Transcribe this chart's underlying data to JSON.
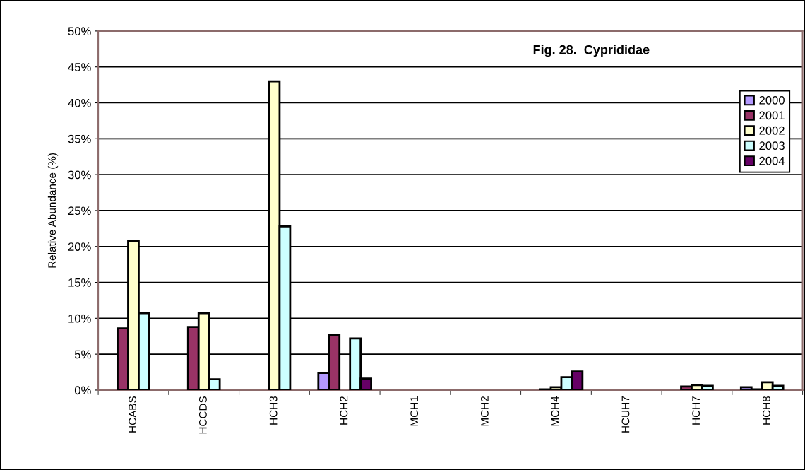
{
  "chart_data": {
    "type": "bar",
    "title": "Fig. 28.  Cyprididae",
    "ylabel": "Relative Abundance (%)",
    "categories": [
      "HCABS",
      "HCCDS",
      "HCH3",
      "HCH2",
      "MCH1",
      "MCH2",
      "MCH4",
      "HCUH7",
      "HCH7",
      "HCH8"
    ],
    "series": [
      {
        "name": "2000",
        "color": "#b399ff",
        "values": [
          0,
          0,
          0,
          2.4,
          0,
          0,
          null,
          0,
          null,
          0.4
        ]
      },
      {
        "name": "2001",
        "color": "#993366",
        "values": [
          8.6,
          8.8,
          0,
          7.7,
          0,
          0,
          0.1,
          0,
          0.5,
          0.1
        ]
      },
      {
        "name": "2002",
        "color": "#ffffcc",
        "values": [
          20.8,
          10.7,
          43,
          0,
          0,
          0,
          0.4,
          0,
          0.7,
          1.1
        ]
      },
      {
        "name": "2003",
        "color": "#ccffff",
        "values": [
          10.7,
          1.5,
          22.8,
          7.2,
          0,
          0,
          1.8,
          0,
          0.6,
          0.6
        ]
      },
      {
        "name": "2004",
        "color": "#660066",
        "values": [
          0,
          0,
          0,
          1.6,
          0,
          0,
          2.6,
          0,
          0,
          0
        ]
      }
    ],
    "ylim": [
      0,
      50
    ],
    "yticks": [
      {
        "value": 0,
        "label": "0%"
      },
      {
        "value": 5,
        "label": "5%"
      },
      {
        "value": 10,
        "label": "10%"
      },
      {
        "value": 15,
        "label": "15%"
      },
      {
        "value": 20,
        "label": "20%"
      },
      {
        "value": 25,
        "label": "25%"
      },
      {
        "value": 30,
        "label": "30%"
      },
      {
        "value": 35,
        "label": "35%"
      },
      {
        "value": 40,
        "label": "40%"
      },
      {
        "value": 45,
        "label": "45%"
      },
      {
        "value": 50,
        "label": "50%"
      }
    ],
    "grid": "y",
    "legend": "right"
  }
}
